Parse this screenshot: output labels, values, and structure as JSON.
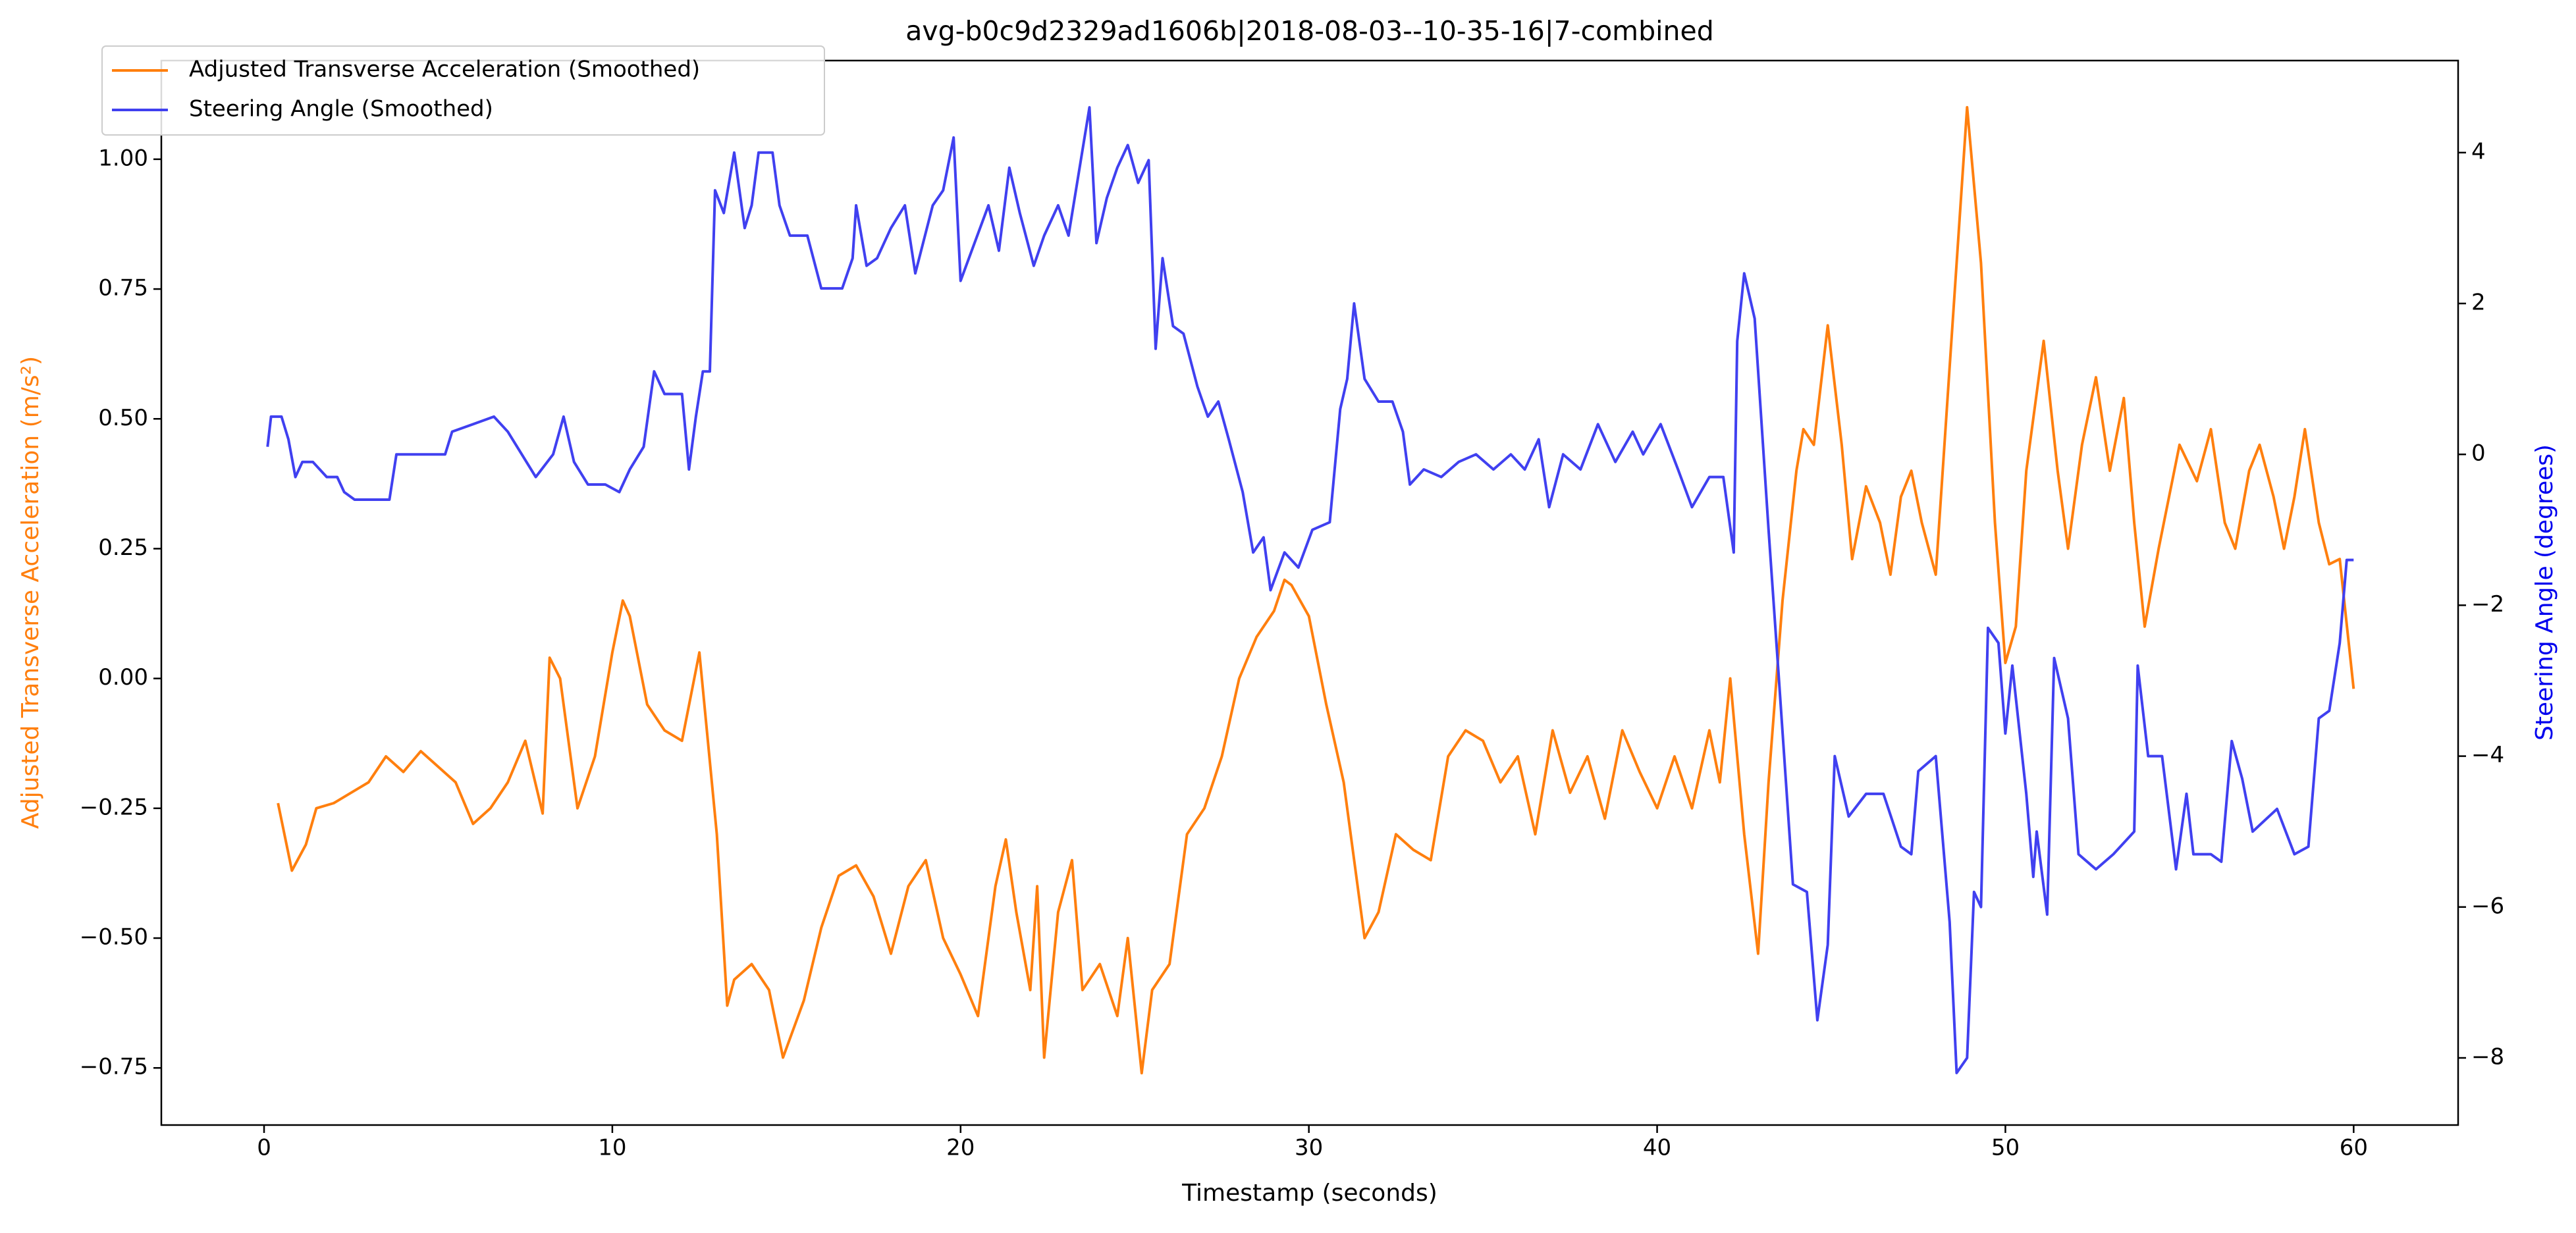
{
  "chart_data": {
    "type": "line",
    "title": "avg-b0c9d2329ad1606b|2018-08-03--10-35-16|7-combined",
    "x_label": "Timestamp (seconds)",
    "y_label": "Adjusted Transverse Acceleration (m/s²)",
    "y2_label": "Steering Angle (degrees)",
    "y_label_color": "#ff7f0e",
    "y2_label_color": "#0000ee",
    "legend": "upper left",
    "grid": false,
    "xlim": [
      -2.95,
      63
    ],
    "xticks": [
      0,
      10,
      20,
      30,
      40,
      50,
      60
    ],
    "ylim": [
      -0.86,
      1.19
    ],
    "yticks": [
      {
        "value": -0.75,
        "label": "−0.75"
      },
      {
        "value": -0.5,
        "label": "−0.50"
      },
      {
        "value": -0.25,
        "label": "−0.25"
      },
      {
        "value": 0,
        "label": "0.00"
      },
      {
        "value": 0.25,
        "label": "0.25"
      },
      {
        "value": 0.5,
        "label": "0.50"
      },
      {
        "value": 0.75,
        "label": "0.75"
      },
      {
        "value": 1,
        "label": "1.00"
      }
    ],
    "y2lim": [
      -8.89,
      5.22
    ],
    "y2ticks": [
      {
        "value": -8,
        "label": "−8"
      },
      {
        "value": -6,
        "label": "−6"
      },
      {
        "value": -4,
        "label": "−4"
      },
      {
        "value": -2,
        "label": "−2"
      },
      0,
      2,
      4
    ],
    "series": [
      {
        "name": "Adjusted Transverse Acceleration (Smoothed)",
        "color": "#ff7f0e",
        "axis": "y",
        "x": [
          0.4,
          0.8,
          1.2,
          1.5,
          2,
          2.5,
          3,
          3.5,
          4,
          4.5,
          5,
          5.5,
          6,
          6.5,
          7,
          7.5,
          8,
          8.2,
          8.5,
          9,
          9.5,
          10,
          10.3,
          10.5,
          11,
          11.5,
          12,
          12.5,
          13,
          13.3,
          13.5,
          14,
          14.5,
          14.9,
          15.5,
          16,
          16.5,
          17,
          17.5,
          18,
          18.5,
          19,
          19.5,
          20,
          20.5,
          21,
          21.3,
          21.6,
          22,
          22.2,
          22.4,
          22.8,
          23.2,
          23.5,
          24,
          24.5,
          24.8,
          25.2,
          25.5,
          26,
          26.5,
          27,
          27.5,
          28,
          28.5,
          29,
          29.3,
          29.5,
          30,
          30.5,
          31,
          31.6,
          32,
          32.5,
          33,
          33.5,
          34,
          34.5,
          35,
          35.5,
          36,
          36.5,
          37,
          37.5,
          38,
          38.5,
          39,
          39.5,
          40,
          40.5,
          41,
          41.5,
          41.8,
          42.1,
          42.5,
          42.9,
          43.2,
          43.6,
          44,
          44.2,
          44.5,
          44.9,
          45.3,
          45.6,
          46,
          46.4,
          46.7,
          47,
          47.3,
          47.6,
          48,
          48.4,
          48.9,
          49.3,
          49.7,
          50,
          50.3,
          50.6,
          51.1,
          51.5,
          51.8,
          52.2,
          52.6,
          53,
          53.4,
          53.7,
          54,
          54.4,
          54.7,
          55,
          55.5,
          55.9,
          56.3,
          56.6,
          57,
          57.3,
          57.7,
          58,
          58.3,
          58.6,
          59,
          59.3,
          59.6,
          60
        ],
        "values": [
          -0.24,
          -0.37,
          -0.32,
          -0.25,
          -0.24,
          -0.22,
          -0.2,
          -0.15,
          -0.18,
          -0.14,
          -0.17,
          -0.2,
          -0.28,
          -0.25,
          -0.2,
          -0.12,
          -0.26,
          0.04,
          0.0,
          -0.25,
          -0.15,
          0.05,
          0.15,
          0.12,
          -0.05,
          -0.1,
          -0.12,
          0.05,
          -0.3,
          -0.63,
          -0.58,
          -0.55,
          -0.6,
          -0.73,
          -0.62,
          -0.48,
          -0.38,
          -0.36,
          -0.42,
          -0.53,
          -0.4,
          -0.35,
          -0.5,
          -0.57,
          -0.65,
          -0.4,
          -0.31,
          -0.45,
          -0.6,
          -0.4,
          -0.73,
          -0.45,
          -0.35,
          -0.6,
          -0.55,
          -0.65,
          -0.5,
          -0.76,
          -0.6,
          -0.55,
          -0.3,
          -0.25,
          -0.15,
          0.0,
          0.08,
          0.13,
          0.19,
          0.18,
          0.12,
          -0.05,
          -0.2,
          -0.5,
          -0.45,
          -0.3,
          -0.33,
          -0.35,
          -0.15,
          -0.1,
          -0.12,
          -0.2,
          -0.15,
          -0.3,
          -0.1,
          -0.22,
          -0.15,
          -0.27,
          -0.1,
          -0.18,
          -0.25,
          -0.15,
          -0.25,
          -0.1,
          -0.2,
          0.0,
          -0.3,
          -0.53,
          -0.2,
          0.15,
          0.4,
          0.48,
          0.45,
          0.68,
          0.45,
          0.23,
          0.37,
          0.3,
          0.2,
          0.35,
          0.4,
          0.3,
          0.2,
          0.6,
          1.1,
          0.8,
          0.3,
          0.03,
          0.1,
          0.4,
          0.65,
          0.4,
          0.25,
          0.45,
          0.58,
          0.4,
          0.54,
          0.3,
          0.1,
          0.25,
          0.35,
          0.45,
          0.38,
          0.48,
          0.3,
          0.25,
          0.4,
          0.45,
          0.35,
          0.25,
          0.35,
          0.48,
          0.3,
          0.22,
          0.23,
          -0.02
        ]
      },
      {
        "name": "Steering Angle (Smoothed)",
        "color": "#4040f0",
        "axis": "y2",
        "x": [
          0.1,
          0.2,
          0.5,
          0.7,
          0.9,
          1.1,
          1.4,
          1.8,
          2.1,
          2.3,
          2.6,
          3,
          3.6,
          3.8,
          5.2,
          5.4,
          6,
          6.6,
          7,
          7.4,
          7.8,
          8.3,
          8.6,
          8.9,
          9.3,
          9.8,
          10.2,
          10.5,
          10.9,
          11.2,
          11.5,
          12,
          12.2,
          12.4,
          12.6,
          12.8,
          12.95,
          13.2,
          13.5,
          13.8,
          14,
          14.2,
          14.6,
          14.8,
          15.1,
          15.6,
          16,
          16.6,
          16.9,
          17,
          17.3,
          17.6,
          18,
          18.4,
          18.7,
          19.2,
          19.5,
          19.8,
          20,
          20.4,
          20.8,
          21.1,
          21.4,
          21.7,
          22.1,
          22.4,
          22.8,
          23.1,
          23.7,
          23.9,
          24.2,
          24.5,
          24.8,
          25.1,
          25.4,
          25.6,
          25.8,
          26.1,
          26.4,
          26.8,
          27.1,
          27.4,
          27.7,
          28.1,
          28.4,
          28.7,
          28.9,
          29.3,
          29.7,
          30.1,
          30.6,
          30.9,
          31.1,
          31.3,
          31.6,
          32,
          32.4,
          32.7,
          32.9,
          33.3,
          33.8,
          34.3,
          34.8,
          35.3,
          35.8,
          36.2,
          36.6,
          36.9,
          37.3,
          37.8,
          38.3,
          38.8,
          39.3,
          39.6,
          40.1,
          40.6,
          41,
          41.5,
          41.9,
          42.2,
          42.3,
          42.5,
          42.8,
          43.2,
          43.5,
          43.9,
          44.3,
          44.6,
          44.9,
          45.1,
          45.5,
          46,
          46.5,
          47,
          47.3,
          47.5,
          48,
          48.4,
          48.6,
          48.9,
          49.1,
          49.3,
          49.5,
          49.8,
          50,
          50.2,
          50.6,
          50.8,
          50.9,
          51.2,
          51.4,
          51.8,
          52.1,
          52.6,
          53.1,
          53.7,
          53.8,
          54.1,
          54.5,
          54.9,
          55.2,
          55.4,
          55.9,
          56.2,
          56.5,
          56.8,
          57.1,
          57.8,
          58.3,
          58.7,
          59,
          59.3,
          59.6,
          59.8,
          60
        ],
        "values": [
          0.1,
          0.5,
          0.5,
          0.2,
          -0.3,
          -0.1,
          -0.1,
          -0.3,
          -0.3,
          -0.5,
          -0.6,
          -0.6,
          -0.6,
          0.0,
          0.0,
          0.3,
          0.4,
          0.5,
          0.3,
          0.0,
          -0.3,
          0.0,
          0.5,
          -0.1,
          -0.4,
          -0.4,
          -0.5,
          -0.2,
          0.1,
          1.1,
          0.8,
          0.8,
          -0.2,
          0.5,
          1.1,
          1.1,
          3.5,
          3.2,
          4.0,
          3.0,
          3.3,
          4.0,
          4.0,
          3.3,
          2.9,
          2.9,
          2.2,
          2.2,
          2.6,
          3.3,
          2.5,
          2.6,
          3.0,
          3.3,
          2.4,
          3.3,
          3.5,
          4.2,
          2.3,
          2.8,
          3.3,
          2.7,
          3.8,
          3.2,
          2.5,
          2.9,
          3.3,
          2.9,
          4.6,
          2.8,
          3.4,
          3.8,
          4.1,
          3.6,
          3.9,
          1.4,
          2.6,
          1.7,
          1.6,
          0.9,
          0.5,
          0.7,
          0.2,
          -0.5,
          -1.3,
          -1.1,
          -1.8,
          -1.3,
          -1.5,
          -1.0,
          -0.9,
          0.6,
          1.0,
          2.0,
          1.0,
          0.7,
          0.7,
          0.3,
          -0.4,
          -0.2,
          -0.3,
          -0.1,
          0.0,
          -0.2,
          0.0,
          -0.2,
          0.2,
          -0.7,
          0.0,
          -0.2,
          0.4,
          -0.1,
          0.3,
          0.0,
          0.4,
          -0.2,
          -0.7,
          -0.3,
          -0.3,
          -1.3,
          1.5,
          2.4,
          1.8,
          -1.0,
          -3.0,
          -5.7,
          -5.8,
          -7.5,
          -6.5,
          -4.0,
          -4.8,
          -4.5,
          -4.5,
          -5.2,
          -5.3,
          -4.2,
          -4.0,
          -6.2,
          -8.2,
          -8.0,
          -5.8,
          -6.0,
          -2.3,
          -2.5,
          -3.7,
          -2.8,
          -4.5,
          -5.6,
          -5.0,
          -6.1,
          -2.7,
          -3.5,
          -5.3,
          -5.5,
          -5.3,
          -5.0,
          -2.8,
          -4.0,
          -4.0,
          -5.5,
          -4.5,
          -5.3,
          -5.3,
          -5.4,
          -3.8,
          -4.3,
          -5.0,
          -4.7,
          -5.3,
          -5.2,
          -3.5,
          -3.4,
          -2.5,
          -1.4,
          -1.4
        ]
      }
    ]
  }
}
